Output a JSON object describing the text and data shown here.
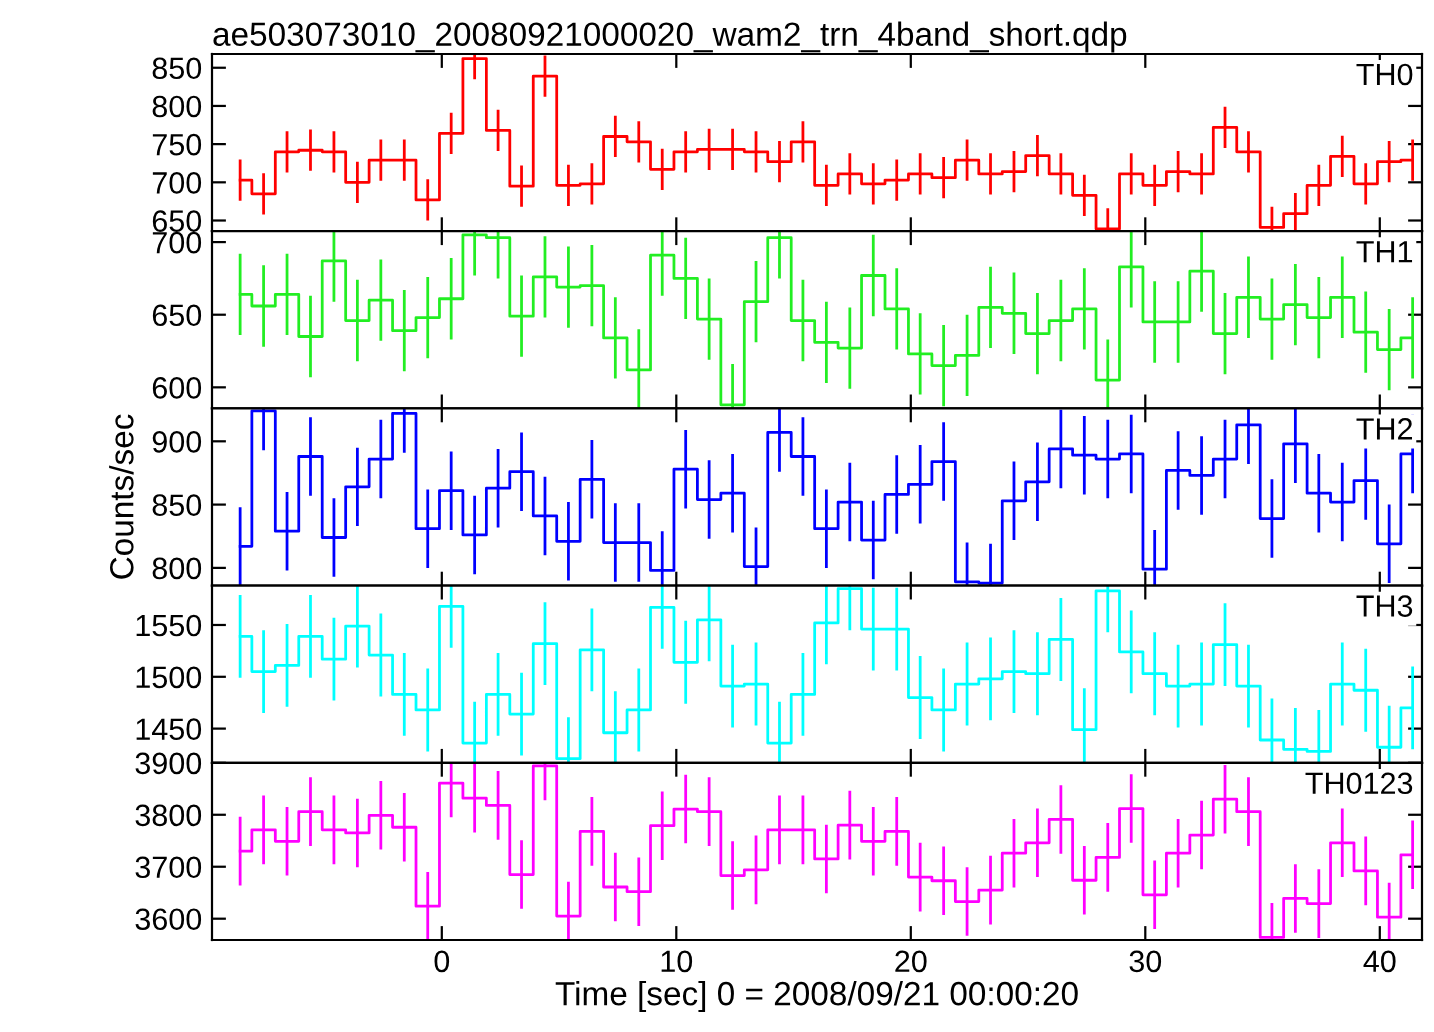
{
  "chart_data": [
    {
      "type": "step",
      "title": "ae503073010_20080921000020_wam2_trn_4band_short.qdp",
      "x": [
        -8.6,
        -7.6,
        -6.6,
        -5.6,
        -4.6,
        -3.6,
        -2.6,
        -1.6,
        -0.6,
        0.4,
        1.4,
        2.4,
        3.4,
        4.4,
        5.4,
        6.4,
        7.4,
        8.4,
        9.4,
        10.4,
        11.4,
        12.4,
        13.4,
        14.4,
        15.4,
        16.4,
        17.4,
        18.4,
        19.4,
        20.4,
        21.4,
        22.4,
        23.4,
        24.4,
        25.4,
        26.4,
        27.4,
        28.4,
        29.4,
        30.4,
        31.4,
        32.4,
        33.4,
        34.4,
        35.4,
        36.4,
        37.4,
        38.4,
        39.4,
        40.4,
        41.4
      ],
      "xlim": [
        -9.8,
        41.8
      ],
      "xticks": [
        0,
        10,
        20,
        30,
        40
      ],
      "ylim": [
        636,
        868
      ],
      "yticks": [
        650,
        700,
        750,
        800,
        850
      ],
      "tick_labels": "y",
      "series": [
        {
          "name": "TH0",
          "color": "#ff0000",
          "errors": [
            27,
            27,
            27,
            27,
            27,
            27,
            27,
            27,
            27,
            27,
            27,
            27,
            27,
            27,
            27,
            27,
            27,
            27,
            27,
            27,
            27,
            27,
            27,
            27,
            27,
            27,
            27,
            27,
            27,
            27,
            27,
            27,
            27,
            27,
            27,
            27,
            27,
            27,
            27,
            27,
            27,
            27,
            27,
            27,
            27,
            27,
            27,
            27,
            27,
            27,
            27
          ],
          "values": [
            703,
            685,
            740,
            742,
            740,
            700,
            729,
            729,
            677,
            764,
            862,
            768,
            695,
            839,
            696,
            698,
            760,
            753,
            717,
            740,
            743,
            743,
            740,
            727,
            753,
            696,
            711,
            698,
            703,
            711,
            706,
            729,
            711,
            714,
            735,
            711,
            683,
            639,
            711,
            696,
            714,
            711,
            772,
            740,
            641,
            659,
            696,
            734,
            698,
            727,
            729
          ]
        }
      ]
    },
    {
      "type": "step",
      "x": [
        -8.6,
        -7.6,
        -6.6,
        -5.6,
        -4.6,
        -3.6,
        -2.6,
        -1.6,
        -0.6,
        0.4,
        1.4,
        2.4,
        3.4,
        4.4,
        5.4,
        6.4,
        7.4,
        8.4,
        9.4,
        10.4,
        11.4,
        12.4,
        13.4,
        14.4,
        15.4,
        16.4,
        17.4,
        18.4,
        19.4,
        20.4,
        21.4,
        22.4,
        23.4,
        24.4,
        25.4,
        26.4,
        27.4,
        28.4,
        29.4,
        30.4,
        31.4,
        32.4,
        33.4,
        34.4,
        35.4,
        36.4,
        37.4,
        38.4,
        39.4,
        40.4,
        41.4
      ],
      "xlim": [
        -9.8,
        41.8
      ],
      "xticks": [
        0,
        10,
        20,
        30,
        40
      ],
      "ylim": [
        585.5,
        707.5
      ],
      "yticks": [
        600,
        650,
        700
      ],
      "tick_labels": "y",
      "series": [
        {
          "name": "TH1",
          "color": "#22ee22",
          "errors": [
            28,
            28,
            28,
            28,
            28,
            28,
            28,
            28,
            28,
            28,
            28,
            28,
            28,
            28,
            28,
            28,
            28,
            28,
            28,
            28,
            28,
            28,
            28,
            28,
            28,
            28,
            28,
            28,
            28,
            28,
            28,
            28,
            28,
            28,
            28,
            28,
            28,
            28,
            28,
            28,
            28,
            28,
            28,
            28,
            28,
            28,
            28,
            28,
            28,
            28,
            28
          ],
          "values": [
            664,
            656,
            664,
            635,
            687,
            646,
            660,
            639,
            648,
            661,
            705,
            703,
            649,
            676,
            669,
            670,
            634,
            612,
            691,
            675,
            647,
            588,
            659,
            703,
            646,
            631,
            627,
            677,
            654,
            623,
            615,
            622,
            655,
            651,
            637,
            646,
            654,
            605,
            683,
            645,
            645,
            680,
            637,
            662,
            647,
            657,
            648,
            662,
            638,
            626,
            634
          ]
        }
      ]
    },
    {
      "type": "step",
      "ylabel": "Counts/sec",
      "x": [
        -8.6,
        -7.6,
        -6.6,
        -5.6,
        -4.6,
        -3.6,
        -2.6,
        -1.6,
        -0.6,
        0.4,
        1.4,
        2.4,
        3.4,
        4.4,
        5.4,
        6.4,
        7.4,
        8.4,
        9.4,
        10.4,
        11.4,
        12.4,
        13.4,
        14.4,
        15.4,
        16.4,
        17.4,
        18.4,
        19.4,
        20.4,
        21.4,
        22.4,
        23.4,
        24.4,
        25.4,
        26.4,
        27.4,
        28.4,
        29.4,
        30.4,
        31.4,
        32.4,
        33.4,
        34.4,
        35.4,
        36.4,
        37.4,
        38.4,
        39.4,
        40.4,
        41.4
      ],
      "xlim": [
        -9.8,
        41.8
      ],
      "xticks": [
        0,
        10,
        20,
        30,
        40
      ],
      "ylim": [
        786,
        926
      ],
      "yticks": [
        800,
        850,
        900
      ],
      "tick_labels": "y",
      "series": [
        {
          "name": "TH2",
          "color": "#0000ff",
          "errors": [
            31,
            31,
            31,
            31,
            31,
            31,
            31,
            31,
            31,
            31,
            31,
            31,
            31,
            31,
            31,
            31,
            31,
            31,
            31,
            31,
            31,
            31,
            31,
            31,
            31,
            31,
            31,
            31,
            31,
            31,
            31,
            31,
            31,
            31,
            31,
            31,
            31,
            31,
            31,
            31,
            31,
            31,
            31,
            31,
            31,
            31,
            31,
            31,
            31,
            31,
            31
          ],
          "values": [
            817,
            924,
            829,
            888,
            824,
            864,
            886,
            922,
            831,
            861,
            826,
            863,
            876,
            841,
            821,
            870,
            820,
            820,
            798,
            878,
            854,
            859,
            801,
            907,
            888,
            831,
            852,
            822,
            858,
            866,
            884,
            789,
            788,
            853,
            868,
            894,
            889,
            886,
            890,
            799,
            877,
            873,
            886,
            913,
            839,
            898,
            859,
            852,
            869,
            819,
            890
          ]
        }
      ]
    },
    {
      "type": "step",
      "x": [
        -8.6,
        -7.6,
        -6.6,
        -5.6,
        -4.6,
        -3.6,
        -2.6,
        -1.6,
        -0.6,
        0.4,
        1.4,
        2.4,
        3.4,
        4.4,
        5.4,
        6.4,
        7.4,
        8.4,
        9.4,
        10.4,
        11.4,
        12.4,
        13.4,
        14.4,
        15.4,
        16.4,
        17.4,
        18.4,
        19.4,
        20.4,
        21.4,
        22.4,
        23.4,
        24.4,
        25.4,
        26.4,
        27.4,
        28.4,
        29.4,
        30.4,
        31.4,
        32.4,
        33.4,
        34.4,
        35.4,
        36.4,
        37.4,
        38.4,
        39.4,
        40.4,
        41.4
      ],
      "xlim": [
        -9.8,
        41.8
      ],
      "xticks": [
        0,
        10,
        20,
        30,
        40
      ],
      "ylim": [
        1417,
        1588
      ],
      "yticks": [
        1450,
        1500,
        1550
      ],
      "tick_labels": "y",
      "series": [
        {
          "name": "TH3",
          "color": "#00ffff",
          "errors": [
            40,
            40,
            40,
            40,
            40,
            40,
            40,
            40,
            40,
            40,
            40,
            40,
            40,
            40,
            40,
            40,
            40,
            40,
            40,
            40,
            40,
            40,
            40,
            40,
            40,
            40,
            40,
            40,
            40,
            40,
            40,
            40,
            40,
            40,
            40,
            40,
            40,
            40,
            40,
            40,
            40,
            40,
            40,
            40,
            40,
            40,
            40,
            40,
            40,
            40,
            40
          ],
          "values": [
            1539,
            1505,
            1511,
            1539,
            1517,
            1549,
            1521,
            1483,
            1468,
            1568,
            1436,
            1483,
            1464,
            1532,
            1421,
            1526,
            1446,
            1468,
            1567,
            1514,
            1555,
            1491,
            1493,
            1436,
            1483,
            1552,
            1585,
            1546,
            1546,
            1480,
            1468,
            1493,
            1498,
            1505,
            1503,
            1536,
            1449,
            1583,
            1524,
            1503,
            1491,
            1493,
            1531,
            1491,
            1439,
            1430,
            1428,
            1493,
            1487,
            1432,
            1470
          ]
        }
      ]
    },
    {
      "type": "step",
      "xlabel": "Time [sec] 0 = 2008/09/21 00:00:20",
      "x": [
        -8.6,
        -7.6,
        -6.6,
        -5.6,
        -4.6,
        -3.6,
        -2.6,
        -1.6,
        -0.6,
        0.4,
        1.4,
        2.4,
        3.4,
        4.4,
        5.4,
        6.4,
        7.4,
        8.4,
        9.4,
        10.4,
        11.4,
        12.4,
        13.4,
        14.4,
        15.4,
        16.4,
        17.4,
        18.4,
        19.4,
        20.4,
        21.4,
        22.4,
        23.4,
        24.4,
        25.4,
        26.4,
        27.4,
        28.4,
        29.4,
        30.4,
        31.4,
        32.4,
        33.4,
        34.4,
        35.4,
        36.4,
        37.4,
        38.4,
        39.4,
        40.4,
        41.4
      ],
      "xlim": [
        -9.8,
        41.8
      ],
      "xticks": [
        0,
        10,
        20,
        30,
        40
      ],
      "ylim": [
        3559,
        3900
      ],
      "yticks": [
        3600,
        3700,
        3800,
        3900
      ],
      "series": [
        {
          "name": "TH0123",
          "color": "#ff00ff",
          "errors": [
            66,
            66,
            66,
            66,
            66,
            66,
            66,
            66,
            66,
            66,
            66,
            66,
            66,
            66,
            66,
            66,
            66,
            66,
            66,
            66,
            66,
            66,
            66,
            66,
            66,
            66,
            66,
            66,
            66,
            66,
            66,
            66,
            66,
            66,
            66,
            66,
            66,
            66,
            66,
            66,
            66,
            66,
            66,
            66,
            66,
            66,
            66,
            66,
            66,
            66,
            66
          ],
          "values": [
            3730,
            3771,
            3749,
            3806,
            3771,
            3765,
            3799,
            3776,
            3624,
            3861,
            3832,
            3818,
            3685,
            3894,
            3605,
            3768,
            3661,
            3652,
            3779,
            3811,
            3806,
            3683,
            3694,
            3771,
            3771,
            3715,
            3780,
            3749,
            3768,
            3680,
            3673,
            3633,
            3655,
            3726,
            3746,
            3791,
            3674,
            3718,
            3812,
            3646,
            3726,
            3761,
            3830,
            3806,
            3564,
            3639,
            3629,
            3746,
            3692,
            3603,
            3723
          ]
        }
      ]
    }
  ]
}
